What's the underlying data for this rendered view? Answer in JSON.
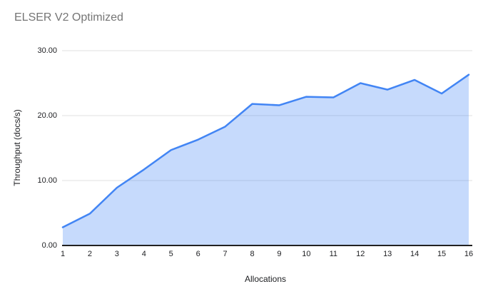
{
  "title": "ELSER V2 Optimized",
  "chart_data": {
    "type": "area",
    "title": "ELSER V2 Optimized",
    "xlabel": "Allocations",
    "ylabel": "Throughput (docs/s)",
    "x": [
      1,
      2,
      3,
      4,
      5,
      6,
      7,
      8,
      9,
      10,
      11,
      12,
      13,
      14,
      15,
      16
    ],
    "series": [
      {
        "name": "Throughput (docs/s)",
        "values": [
          2.8,
          4.9,
          8.9,
          11.7,
          14.7,
          16.3,
          18.3,
          21.8,
          21.6,
          22.9,
          22.8,
          25.0,
          24.0,
          25.5,
          23.4,
          26.3
        ]
      }
    ],
    "xlim": [
      1,
      16
    ],
    "ylim": [
      0,
      30
    ],
    "xticks": [
      "1",
      "2",
      "3",
      "4",
      "5",
      "6",
      "7",
      "8",
      "9",
      "10",
      "11",
      "12",
      "13",
      "14",
      "15",
      "16"
    ],
    "yticks": [
      "0.00",
      "10.00",
      "20.00",
      "30.00"
    ],
    "ytick_values": [
      0,
      10,
      20,
      30
    ],
    "grid": true,
    "legend": "none",
    "colors": {
      "line": "#4285f4",
      "fill": "rgba(66,133,244,0.3)",
      "grid": "#e0e0e0",
      "axis": "#212121",
      "title": "#757575",
      "tick": "#202124"
    }
  }
}
